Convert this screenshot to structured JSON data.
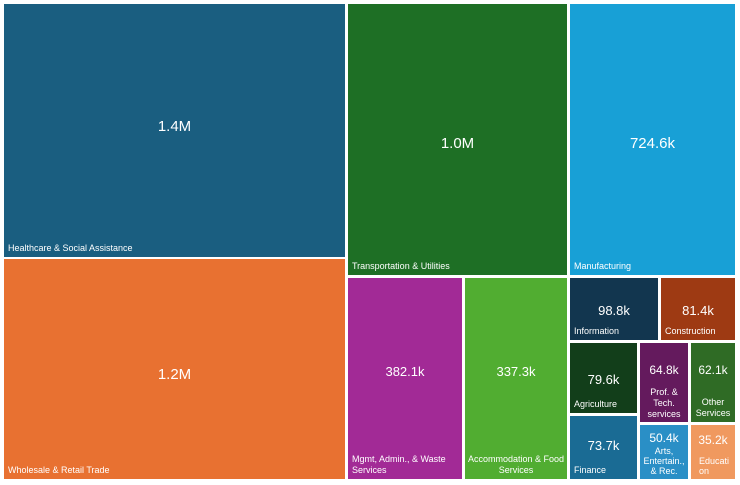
{
  "chart_data": {
    "type": "treemap",
    "title": "",
    "tiles": [
      {
        "name": "Healthcare & Social Assistance",
        "value_label": "1.4M",
        "value": 1400000,
        "color": "#1a5e80"
      },
      {
        "name": "Wholesale & Retail Trade",
        "value_label": "1.2M",
        "value": 1200000,
        "color": "#e87131"
      },
      {
        "name": "Transportation & Utilities",
        "value_label": "1.0M",
        "value": 1000000,
        "color": "#1e6f25"
      },
      {
        "name": "Manufacturing",
        "value_label": "724.6k",
        "value": 724600,
        "color": "#18a0d6"
      },
      {
        "name": "Mgmt, Admin., & Waste Services",
        "value_label": "382.1k",
        "value": 382100,
        "color": "#a22a96"
      },
      {
        "name": "Accommodation & Food Services",
        "value_label": "337.3k",
        "value": 337300,
        "color": "#51ad31"
      },
      {
        "name": "Information",
        "value_label": "98.8k",
        "value": 98800,
        "color": "#12364f"
      },
      {
        "name": "Construction",
        "value_label": "81.4k",
        "value": 81400,
        "color": "#9e3a13"
      },
      {
        "name": "Agriculture",
        "value_label": "79.6k",
        "value": 79600,
        "color": "#123e1a"
      },
      {
        "name": "Prof. & Tech. services",
        "value_label": "64.8k",
        "value": 64800,
        "color": "#641a5d"
      },
      {
        "name": "Other Services",
        "value_label": "62.1k",
        "value": 62100,
        "color": "#2f6b25"
      },
      {
        "name": "Finance",
        "value_label": "73.7k",
        "value": 73700,
        "color": "#1a6b94"
      },
      {
        "name": "Arts, Entertain., & Rec.",
        "value_label": "50.4k",
        "value": 50400,
        "color": "#2a8fc6"
      },
      {
        "name": "Education",
        "value_label": "35.2k",
        "value": 35200,
        "color": "#f0995f"
      }
    ]
  }
}
